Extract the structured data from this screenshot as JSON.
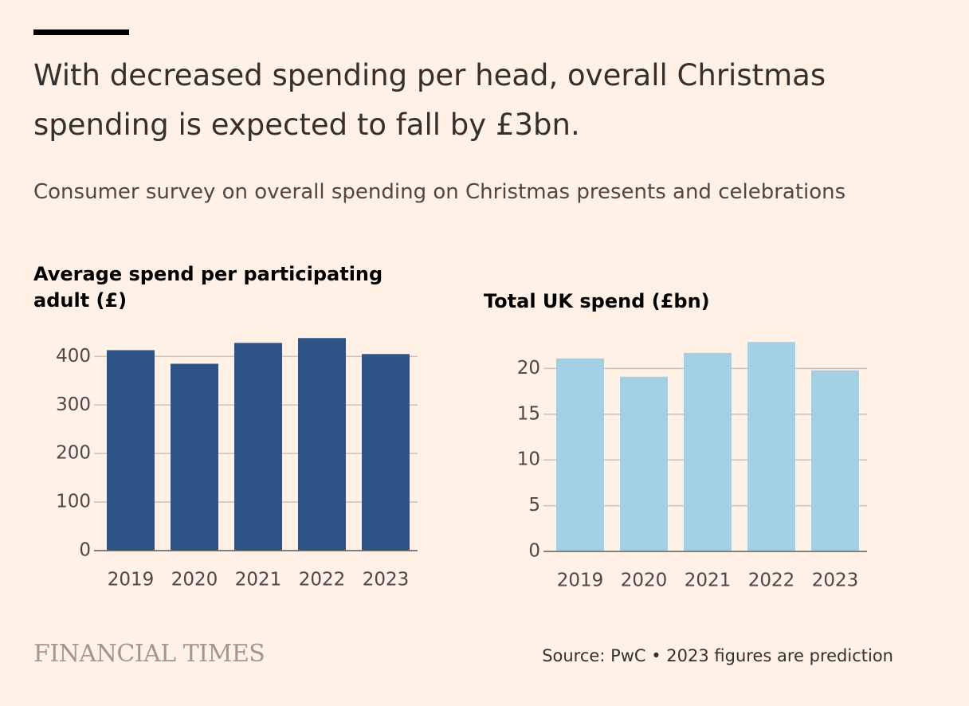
{
  "title": "With decreased spending per head, overall Christmas spending is expected to fall by £3bn.",
  "subtitle": "Consumer survey on overall spending on Christmas presents and celebrations",
  "chart_data": [
    {
      "type": "bar",
      "title": "Average spend per participating adult (£)",
      "categories": [
        "2019",
        "2020",
        "2021",
        "2022",
        "2023"
      ],
      "values": [
        413,
        385,
        428,
        438,
        405
      ],
      "color": "#2e5386",
      "ylim": [
        0,
        440
      ],
      "yticks": [
        0,
        100,
        200,
        300,
        400
      ],
      "grid": true
    },
    {
      "type": "bar",
      "title": "Total UK spend (£bn)",
      "categories": [
        "2019",
        "2020",
        "2021",
        "2022",
        "2023"
      ],
      "values": [
        21.1,
        19.1,
        21.7,
        22.9,
        19.8
      ],
      "color": "#a3cfe2",
      "ylim": [
        0,
        23
      ],
      "yticks": [
        0,
        5,
        10,
        15,
        20
      ],
      "grid": true
    }
  ],
  "brand": "FINANCIAL TIMES",
  "source": "Source: PwC • 2023 figures are prediction"
}
